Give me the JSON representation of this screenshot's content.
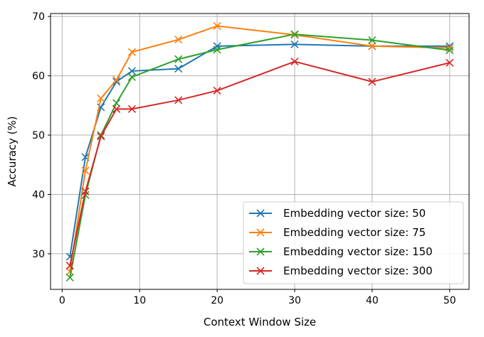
{
  "chart_data": {
    "type": "line",
    "title": "",
    "xlabel": "Context Window Size",
    "ylabel": "Accuracy (%)",
    "xlim": [
      -1.5,
      52.5
    ],
    "ylim": [
      24,
      70.5
    ],
    "xticks": [
      0,
      10,
      20,
      30,
      40,
      50
    ],
    "yticks": [
      30,
      40,
      50,
      60,
      70
    ],
    "grid": true,
    "legend_position": "lower right",
    "marker": "x",
    "x": [
      1,
      3,
      5,
      7,
      9,
      15,
      20,
      30,
      40,
      50
    ],
    "series": [
      {
        "name": "Embedding vector size: 50",
        "color": "#1f77b4",
        "values": [
          29.5,
          46.3,
          54.7,
          59.0,
          60.8,
          61.2,
          65.0,
          65.3,
          65.0,
          65.0
        ]
      },
      {
        "name": "Embedding vector size: 75",
        "color": "#ff7f0e",
        "values": [
          27.0,
          44.0,
          56.2,
          59.3,
          64.0,
          66.1,
          68.4,
          66.9,
          65.0,
          64.7
        ]
      },
      {
        "name": "Embedding vector size: 150",
        "color": "#2ca02c",
        "values": [
          26.0,
          39.9,
          50.0,
          55.4,
          59.8,
          62.8,
          64.4,
          67.0,
          66.0,
          64.3
        ]
      },
      {
        "name": "Embedding vector size: 300",
        "color": "#d62728",
        "values": [
          28.0,
          40.5,
          49.8,
          54.4,
          54.4,
          55.9,
          57.5,
          62.4,
          59.0,
          62.2
        ]
      }
    ]
  }
}
